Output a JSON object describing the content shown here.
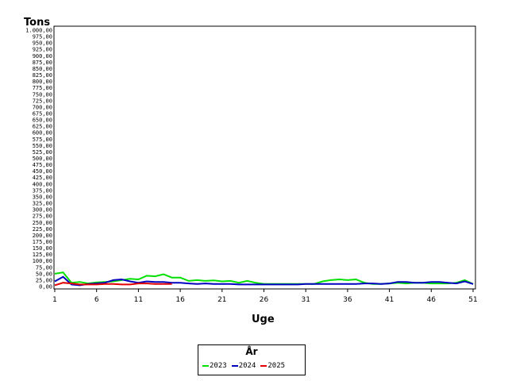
{
  "chart_data": {
    "type": "line",
    "ylabel": "Tons",
    "xlabel": "Uge",
    "ylim": [
      0,
      1000
    ],
    "xlim": [
      1,
      51
    ],
    "yticks": [
      "0,00",
      "25,00",
      "50,00",
      "75,00",
      "100,00",
      "125,00",
      "150,00",
      "175,00",
      "200,00",
      "225,00",
      "250,00",
      "275,00",
      "300,00",
      "325,00",
      "350,00",
      "375,00",
      "400,00",
      "425,00",
      "450,00",
      "475,00",
      "500,00",
      "525,00",
      "550,00",
      "575,00",
      "600,00",
      "625,00",
      "650,00",
      "675,00",
      "700,00",
      "725,00",
      "750,00",
      "775,00",
      "800,00",
      "825,00",
      "850,00",
      "875,00",
      "900,00",
      "925,00",
      "950,00",
      "975,00",
      "1.000,00"
    ],
    "xticks": [
      1,
      6,
      11,
      16,
      21,
      26,
      31,
      36,
      41,
      46,
      51
    ],
    "legend_title": "År",
    "series": [
      {
        "name": "2023",
        "color": "#00e000",
        "x": [
          1,
          2,
          3,
          4,
          5,
          6,
          7,
          8,
          9,
          10,
          11,
          12,
          13,
          14,
          15,
          16,
          17,
          18,
          19,
          20,
          21,
          22,
          23,
          24,
          25,
          26,
          27,
          28,
          29,
          30,
          31,
          32,
          33,
          34,
          35,
          36,
          37,
          38,
          39,
          40,
          41,
          42,
          43,
          44,
          45,
          46,
          47,
          48,
          49,
          50,
          51
        ],
        "values": [
          50,
          55,
          15,
          18,
          12,
          16,
          18,
          20,
          25,
          30,
          28,
          42,
          40,
          48,
          35,
          35,
          22,
          25,
          22,
          24,
          20,
          22,
          15,
          22,
          15,
          10,
          10,
          10,
          10,
          10,
          10,
          10,
          20,
          25,
          28,
          25,
          28,
          15,
          10,
          10,
          12,
          15,
          12,
          15,
          15,
          12,
          12,
          12,
          15,
          25,
          10
        ]
      },
      {
        "name": "2024",
        "color": "#0000c0",
        "x": [
          1,
          2,
          3,
          4,
          5,
          6,
          7,
          8,
          9,
          10,
          11,
          12,
          13,
          14,
          15,
          16,
          17,
          18,
          19,
          20,
          21,
          22,
          23,
          24,
          25,
          26,
          27,
          28,
          29,
          30,
          31,
          32,
          33,
          34,
          35,
          36,
          37,
          38,
          39,
          40,
          41,
          42,
          43,
          44,
          45,
          46,
          47,
          48,
          49,
          50,
          51
        ],
        "values": [
          20,
          38,
          8,
          5,
          10,
          12,
          15,
          25,
          28,
          20,
          15,
          20,
          18,
          18,
          15,
          15,
          12,
          10,
          12,
          10,
          10,
          10,
          8,
          8,
          8,
          8,
          8,
          8,
          8,
          8,
          10,
          10,
          10,
          10,
          10,
          10,
          10,
          12,
          12,
          10,
          12,
          18,
          18,
          15,
          15,
          18,
          18,
          15,
          12,
          20,
          10
        ]
      },
      {
        "name": "2025",
        "color": "#e00000",
        "x": [
          1,
          2,
          3,
          4,
          5,
          6,
          7,
          8,
          9,
          10,
          11,
          12,
          13,
          14,
          15
        ],
        "values": [
          5,
          15,
          12,
          8,
          8,
          8,
          10,
          10,
          8,
          8,
          12,
          12,
          10,
          10,
          10
        ]
      }
    ]
  }
}
